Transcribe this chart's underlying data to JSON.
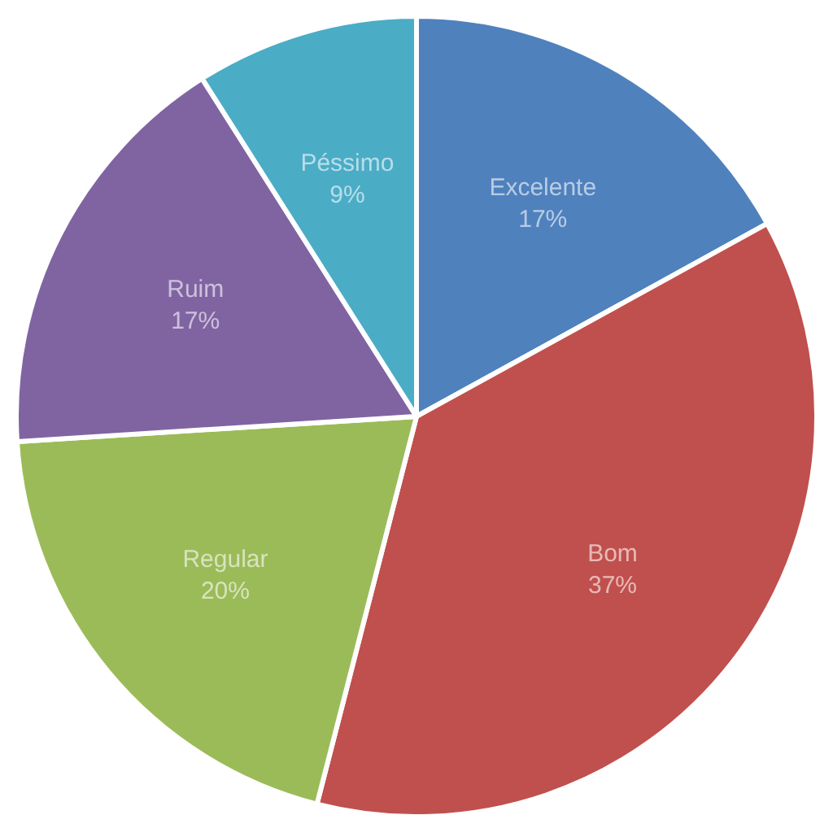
{
  "chart_data": {
    "type": "pie",
    "categories": [
      "Excelente",
      "Bom",
      "Regular",
      "Ruim",
      "Péssimo"
    ],
    "values": [
      17,
      37,
      20,
      17,
      9
    ],
    "value_labels": [
      "17%",
      "37%",
      "20%",
      "17%",
      "9%"
    ],
    "colors": [
      "#4f81bd",
      "#c0504d",
      "#9bbb59",
      "#8064a2",
      "#4bacc6"
    ]
  }
}
